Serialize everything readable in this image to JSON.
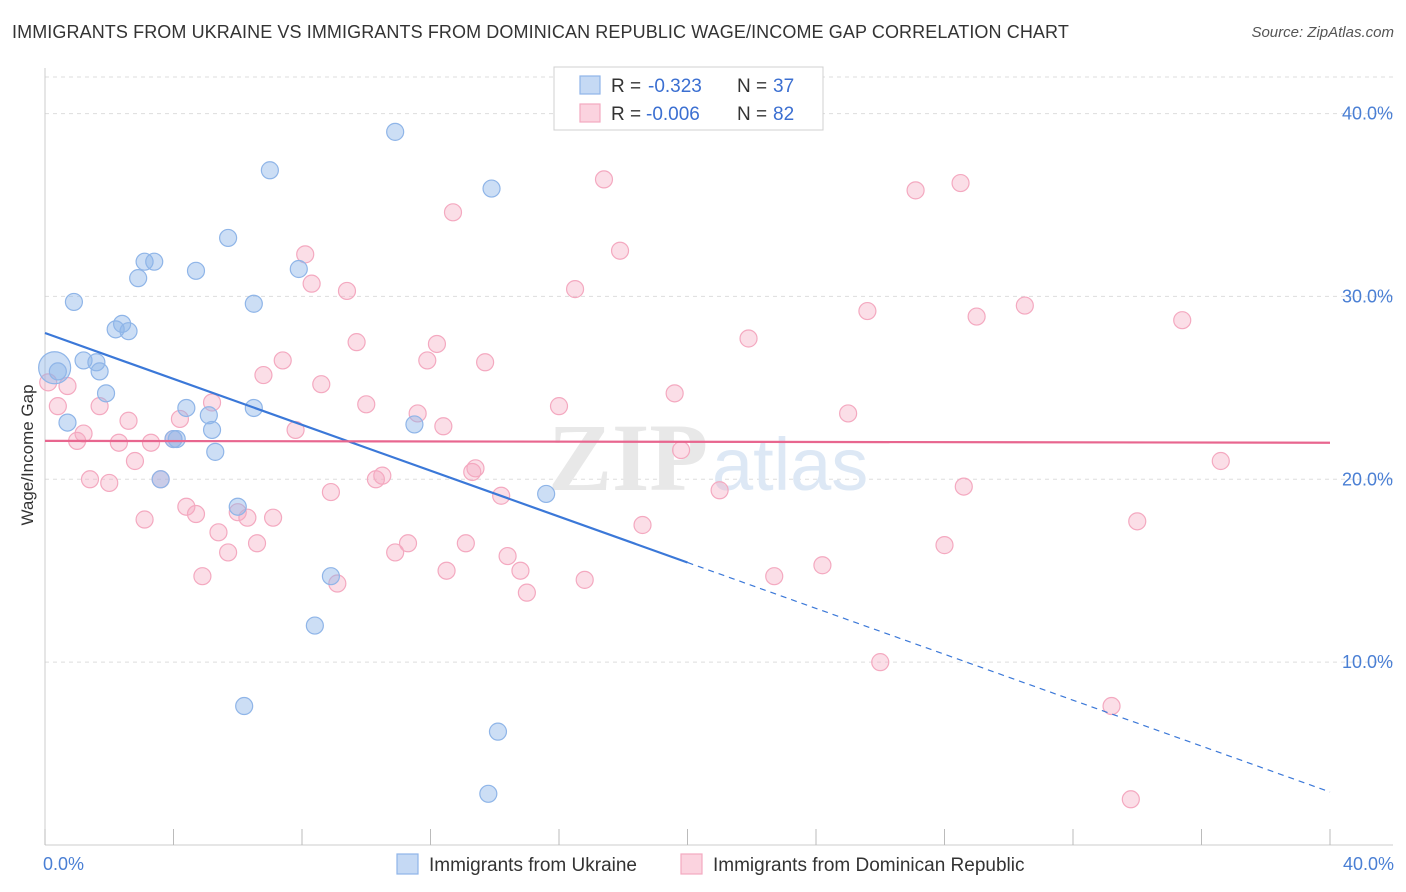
{
  "title": "IMMIGRANTS FROM UKRAINE VS IMMIGRANTS FROM DOMINICAN REPUBLIC WAGE/INCOME GAP CORRELATION CHART",
  "source": "Source: ZipAtlas.com",
  "watermark": {
    "zip": "ZIP",
    "atlas": "atlas"
  },
  "colors": {
    "ukraine": "#8fb5e8",
    "ukraine_line": "#3b78d8",
    "dominican": "#f4a9c0",
    "dominican_line": "#e8668f",
    "tick_text": "#4a7fd4",
    "grid": "#dddddd"
  },
  "legend_box": {
    "rows": [
      {
        "r_label": "R =",
        "r_value": "-0.323",
        "n_label": "N =",
        "n_value": "37"
      },
      {
        "r_label": "R =",
        "r_value": "-0.006",
        "n_label": "N =",
        "n_value": "82"
      }
    ]
  },
  "bottom_legend": [
    "Immigrants from Ukraine",
    "Immigrants from Dominican Republic"
  ],
  "chart_data": {
    "type": "scatter",
    "title": "IMMIGRANTS FROM UKRAINE VS IMMIGRANTS FROM DOMINICAN REPUBLIC WAGE/INCOME GAP CORRELATION CHART",
    "xlabel": "",
    "ylabel": "Wage/Income Gap",
    "xlim": [
      0,
      40
    ],
    "ylim": [
      0,
      42
    ],
    "x_tick_labels": [
      "0.0%",
      "40.0%"
    ],
    "y_ticks": [
      10,
      20,
      30,
      40
    ],
    "y_tick_labels": [
      "10.0%",
      "20.0%",
      "30.0%",
      "40.0%"
    ],
    "grid": true,
    "legend_position": "top-center",
    "series": [
      {
        "name": "Immigrants from Ukraine",
        "R": -0.323,
        "N": 37,
        "trend": {
          "x0": 0,
          "y0": 28.0,
          "x_solid_end": 20.0,
          "x1": 40,
          "y1": 2.9
        },
        "points": [
          [
            0.3,
            26.1
          ],
          [
            0.4,
            25.9
          ],
          [
            0.7,
            23.1
          ],
          [
            0.9,
            29.7
          ],
          [
            1.2,
            26.5
          ],
          [
            1.6,
            26.4
          ],
          [
            1.7,
            25.9
          ],
          [
            1.9,
            24.7
          ],
          [
            2.2,
            28.2
          ],
          [
            2.4,
            28.5
          ],
          [
            2.6,
            28.1
          ],
          [
            2.9,
            31.0
          ],
          [
            3.1,
            31.9
          ],
          [
            3.4,
            31.9
          ],
          [
            3.6,
            20.0
          ],
          [
            4.0,
            22.2
          ],
          [
            4.1,
            22.2
          ],
          [
            4.4,
            23.9
          ],
          [
            4.7,
            31.4
          ],
          [
            5.1,
            23.5
          ],
          [
            5.2,
            22.7
          ],
          [
            5.3,
            21.5
          ],
          [
            5.7,
            33.2
          ],
          [
            6.0,
            18.5
          ],
          [
            6.2,
            7.6
          ],
          [
            6.5,
            29.6
          ],
          [
            6.5,
            23.9
          ],
          [
            7.0,
            36.9
          ],
          [
            7.9,
            31.5
          ],
          [
            8.4,
            12.0
          ],
          [
            8.9,
            14.7
          ],
          [
            10.9,
            39.0
          ],
          [
            11.5,
            23.0
          ],
          [
            13.8,
            2.8
          ],
          [
            13.9,
            35.9
          ],
          [
            14.1,
            6.2
          ],
          [
            15.6,
            19.2
          ]
        ]
      },
      {
        "name": "Immigrants from Dominican Republic",
        "R": -0.006,
        "N": 82,
        "trend": {
          "x0": 0,
          "y0": 22.1,
          "x1": 40,
          "y1": 22.0
        },
        "points": [
          [
            0.1,
            25.3
          ],
          [
            0.4,
            24.0
          ],
          [
            0.7,
            25.1
          ],
          [
            1.0,
            22.1
          ],
          [
            1.2,
            22.5
          ],
          [
            1.4,
            20.0
          ],
          [
            1.7,
            24.0
          ],
          [
            2.0,
            19.8
          ],
          [
            2.3,
            22.0
          ],
          [
            2.6,
            23.2
          ],
          [
            2.8,
            21.0
          ],
          [
            3.1,
            17.8
          ],
          [
            3.3,
            22.0
          ],
          [
            3.6,
            20.0
          ],
          [
            4.0,
            22.2
          ],
          [
            4.2,
            23.3
          ],
          [
            4.4,
            18.5
          ],
          [
            4.7,
            18.1
          ],
          [
            4.9,
            14.7
          ],
          [
            5.2,
            24.2
          ],
          [
            5.4,
            17.1
          ],
          [
            5.7,
            16.0
          ],
          [
            6.0,
            18.2
          ],
          [
            6.3,
            17.9
          ],
          [
            6.6,
            16.5
          ],
          [
            6.8,
            25.7
          ],
          [
            7.1,
            17.9
          ],
          [
            7.4,
            26.5
          ],
          [
            7.8,
            22.7
          ],
          [
            8.1,
            32.3
          ],
          [
            8.3,
            30.7
          ],
          [
            8.6,
            25.2
          ],
          [
            8.9,
            19.3
          ],
          [
            9.1,
            14.3
          ],
          [
            9.4,
            30.3
          ],
          [
            9.7,
            27.5
          ],
          [
            10.0,
            24.1
          ],
          [
            10.3,
            20.0
          ],
          [
            10.5,
            20.2
          ],
          [
            10.9,
            16.0
          ],
          [
            11.3,
            16.5
          ],
          [
            11.6,
            23.6
          ],
          [
            11.9,
            26.5
          ],
          [
            12.2,
            27.4
          ],
          [
            12.4,
            22.9
          ],
          [
            12.5,
            15.0
          ],
          [
            12.7,
            34.6
          ],
          [
            13.1,
            16.5
          ],
          [
            13.3,
            20.4
          ],
          [
            13.7,
            26.4
          ],
          [
            14.2,
            19.1
          ],
          [
            14.4,
            15.8
          ],
          [
            14.8,
            15.0
          ],
          [
            15.0,
            13.8
          ],
          [
            16.0,
            24.0
          ],
          [
            16.5,
            30.4
          ],
          [
            16.8,
            14.5
          ],
          [
            17.4,
            36.4
          ],
          [
            17.9,
            32.5
          ],
          [
            18.6,
            17.5
          ],
          [
            19.6,
            24.7
          ],
          [
            19.8,
            21.6
          ],
          [
            21.0,
            19.4
          ],
          [
            21.9,
            27.7
          ],
          [
            22.7,
            14.7
          ],
          [
            24.2,
            15.3
          ],
          [
            25.0,
            23.6
          ],
          [
            25.6,
            29.2
          ],
          [
            26.0,
            10.0
          ],
          [
            27.1,
            35.8
          ],
          [
            28.0,
            16.4
          ],
          [
            28.5,
            36.2
          ],
          [
            28.6,
            19.6
          ],
          [
            29.0,
            28.9
          ],
          [
            30.5,
            29.5
          ],
          [
            33.2,
            7.6
          ],
          [
            33.8,
            2.5
          ],
          [
            34.0,
            17.7
          ],
          [
            35.4,
            28.7
          ],
          [
            36.6,
            21.0
          ],
          [
            13.4,
            20.6
          ],
          [
            17.0,
            39.6
          ]
        ]
      }
    ]
  }
}
